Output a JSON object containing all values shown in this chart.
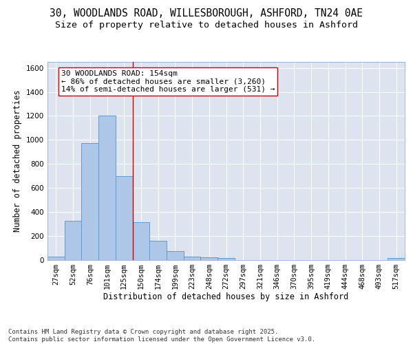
{
  "title_line1": "30, WOODLANDS ROAD, WILLESBOROUGH, ASHFORD, TN24 0AE",
  "title_line2": "Size of property relative to detached houses in Ashford",
  "xlabel": "Distribution of detached houses by size in Ashford",
  "ylabel": "Number of detached properties",
  "bar_labels": [
    "27sqm",
    "52sqm",
    "76sqm",
    "101sqm",
    "125sqm",
    "150sqm",
    "174sqm",
    "199sqm",
    "223sqm",
    "248sqm",
    "272sqm",
    "297sqm",
    "321sqm",
    "346sqm",
    "370sqm",
    "395sqm",
    "419sqm",
    "444sqm",
    "468sqm",
    "493sqm",
    "517sqm"
  ],
  "bar_values": [
    28,
    325,
    970,
    1200,
    700,
    310,
    155,
    70,
    25,
    18,
    15,
    0,
    0,
    0,
    0,
    0,
    0,
    0,
    0,
    0,
    12
  ],
  "bar_color": "#aec6e8",
  "bar_edge_color": "#5b9bd5",
  "vline_color": "#cc0000",
  "vline_pos": 5.5,
  "annotation_text": "30 WOODLANDS ROAD: 154sqm\n← 86% of detached houses are smaller (3,260)\n14% of semi-detached houses are larger (531) →",
  "annotation_box_color": "#ffffff",
  "annotation_box_edge": "#cc0000",
  "ylim": [
    0,
    1650
  ],
  "yticks": [
    0,
    200,
    400,
    600,
    800,
    1000,
    1200,
    1400,
    1600
  ],
  "background_color": "#dde4f0",
  "grid_color": "#ffffff",
  "footer_text": "Contains HM Land Registry data © Crown copyright and database right 2025.\nContains public sector information licensed under the Open Government Licence v3.0.",
  "title_fontsize": 10.5,
  "subtitle_fontsize": 9.5,
  "axis_label_fontsize": 8.5,
  "tick_fontsize": 7.5,
  "annotation_fontsize": 8,
  "footer_fontsize": 6.5
}
